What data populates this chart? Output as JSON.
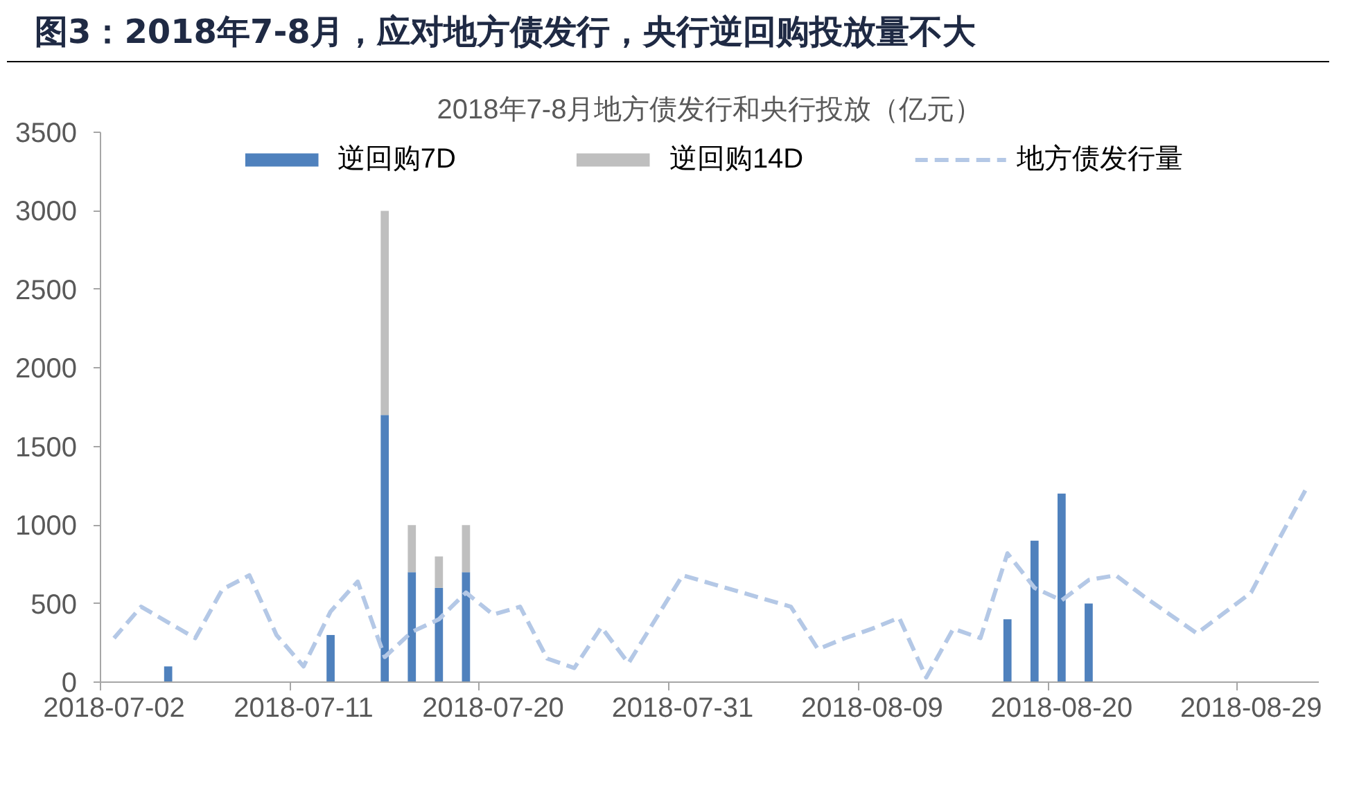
{
  "chart_data": {
    "type": "bar",
    "stacked": true,
    "title": "图3：2018年7-8月，应对地方债发行，央行逆回购投放量不大",
    "subtitle": "2018年7-8月地方债发行和央行投放（亿元）",
    "categories": [
      "2018-07-02",
      null,
      null,
      null,
      null,
      null,
      null,
      "2018-07-11",
      null,
      null,
      null,
      null,
      null,
      null,
      "2018-07-20",
      null,
      null,
      null,
      null,
      null,
      null,
      "2018-07-31",
      null,
      null,
      null,
      null,
      null,
      null,
      "2018-08-09",
      null,
      null,
      null,
      null,
      null,
      null,
      "2018-08-20",
      null,
      null,
      null,
      null,
      null,
      null,
      "2018-08-29",
      null,
      null
    ],
    "series": [
      {
        "name": "逆回购7D",
        "color": "#4f81bd",
        "values": [
          null,
          null,
          100,
          null,
          null,
          null,
          null,
          null,
          300,
          null,
          1700,
          700,
          600,
          700,
          null,
          null,
          null,
          null,
          null,
          null,
          null,
          null,
          null,
          null,
          null,
          null,
          null,
          null,
          null,
          null,
          null,
          null,
          null,
          400,
          900,
          1200,
          500,
          null,
          null,
          null,
          null,
          null,
          null,
          null,
          null
        ]
      },
      {
        "name": "逆回购14D",
        "color": "#bfbfbf",
        "values": [
          null,
          null,
          null,
          null,
          null,
          null,
          null,
          null,
          null,
          null,
          1300,
          300,
          200,
          300,
          null,
          null,
          null,
          null,
          null,
          null,
          null,
          null,
          null,
          null,
          null,
          null,
          null,
          null,
          null,
          null,
          null,
          null,
          null,
          null,
          null,
          null,
          null,
          null,
          null,
          null,
          null,
          null,
          null,
          null,
          null
        ]
      },
      {
        "name": "地方债发行量",
        "type": "line",
        "color": "#b4c8e6",
        "line_style": "dashed",
        "values": [
          280,
          480,
          380,
          280,
          590,
          680,
          300,
          100,
          450,
          640,
          160,
          320,
          400,
          570,
          430,
          480,
          150,
          90,
          350,
          120,
          400,
          680,
          630,
          580,
          530,
          480,
          210,
          280,
          340,
          410,
          30,
          340,
          280,
          820,
          600,
          520,
          650,
          680,
          550,
          430,
          310,
          440,
          570,
          900,
          1220
        ]
      }
    ],
    "ylim": [
      0,
      3500
    ],
    "yticks": [
      0,
      500,
      1000,
      1500,
      2000,
      2500,
      3000,
      3500
    ],
    "grid": false,
    "legend": "top",
    "marker": "none"
  }
}
